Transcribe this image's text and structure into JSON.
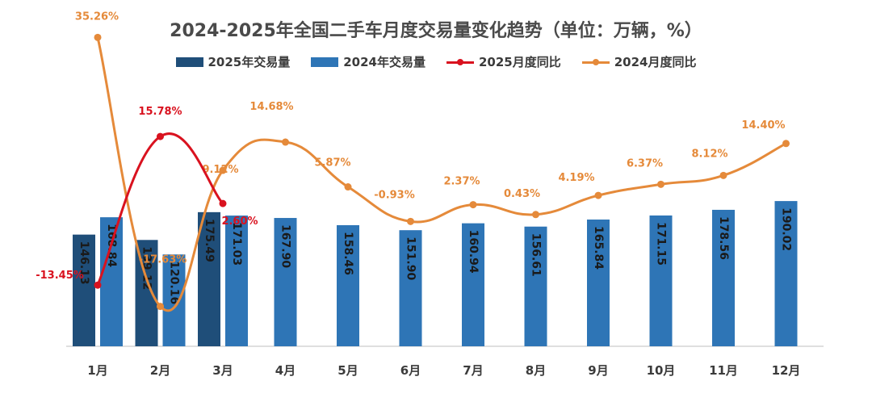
{
  "title": "2024-2025年全国二手车月度交易量变化趋势（单位：万辆，%）",
  "colors": {
    "bar2025": "#1f4e79",
    "bar2024": "#2e75b6",
    "line2025": "#d9121f",
    "line2024": "#e58a3a",
    "axis": "#bfbfbf",
    "text": "#3b3b3b"
  },
  "legend": [
    {
      "label": "2025年交易量",
      "kind": "bar",
      "color": "#1f4e79"
    },
    {
      "label": "2024年交易量",
      "kind": "bar",
      "color": "#2e75b6"
    },
    {
      "label": "2025月度同比",
      "kind": "line",
      "color": "#d9121f"
    },
    {
      "label": "2024月度同比",
      "kind": "line",
      "color": "#e58a3a"
    }
  ],
  "chart_data": {
    "type": "bar",
    "categories": [
      "1月",
      "2月",
      "3月",
      "4月",
      "5月",
      "6月",
      "7月",
      "8月",
      "9月",
      "10月",
      "11月",
      "12月"
    ],
    "bar_series": [
      {
        "name": "2025年交易量",
        "values": [
          146.13,
          139.12,
          175.49,
          null,
          null,
          null,
          null,
          null,
          null,
          null,
          null,
          null
        ],
        "labels": [
          "146.13",
          "139.12",
          "175.49",
          "",
          "",
          "",
          "",
          "",
          "",
          "",
          "",
          ""
        ]
      },
      {
        "name": "2024年交易量",
        "values": [
          168.84,
          120.16,
          171.03,
          167.9,
          158.46,
          151.9,
          160.94,
          156.61,
          165.84,
          171.15,
          178.56,
          190.02
        ],
        "labels": [
          "168.84",
          "120.16",
          "171.03",
          "167.90",
          "158.46",
          "151.90",
          "160.94",
          "156.61",
          "165.84",
          "171.15",
          "178.56",
          "190.02"
        ]
      }
    ],
    "line_series": [
      {
        "name": "2025月度同比",
        "values": [
          -13.45,
          15.78,
          2.6,
          null,
          null,
          null,
          null,
          null,
          null,
          null,
          null,
          null
        ],
        "labels": [
          "-13.45%",
          "15.78%",
          "2.60%",
          "",
          "",
          "",
          "",
          "",
          "",
          "",
          "",
          ""
        ]
      },
      {
        "name": "2024月度同比",
        "values": [
          35.26,
          -17.63,
          9.12,
          14.68,
          5.87,
          -0.93,
          2.37,
          0.43,
          4.19,
          6.37,
          8.12,
          14.4
        ],
        "labels": [
          "35.26%",
          "-17.63%",
          "9.12%",
          "14.68%",
          "5.87%",
          "-0.93%",
          "2.37%",
          "0.43%",
          "4.19%",
          "6.37%",
          "8.12%",
          "14.40%"
        ]
      }
    ],
    "bar_ylim": [
      0,
      200
    ],
    "line_ylim": [
      -25,
      40
    ],
    "legend_position": "top"
  }
}
